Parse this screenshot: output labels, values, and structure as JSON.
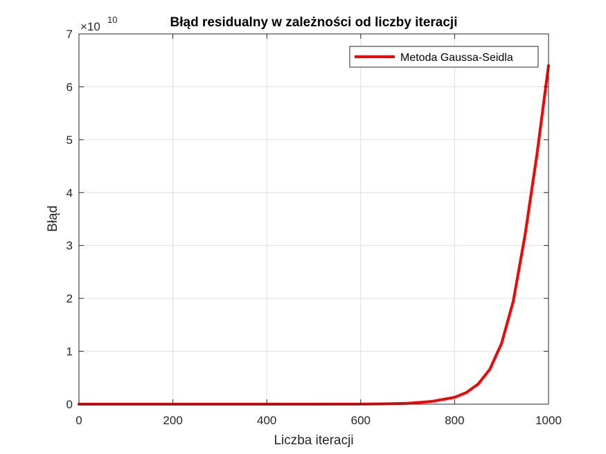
{
  "chart_data": {
    "type": "line",
    "title": "Błąd residualny w zależności od liczby iteracji",
    "xlabel": "Liczba iteracji",
    "ylabel": "Błąd",
    "xlim": [
      0,
      1000
    ],
    "ylim": [
      0,
      7
    ],
    "y_multiplier_base": "×10",
    "y_multiplier_exponent": "10",
    "xticks": [
      0,
      200,
      400,
      600,
      800,
      1000
    ],
    "xtick_labels": [
      "0",
      "200",
      "400",
      "600",
      "800",
      "1000"
    ],
    "yticks": [
      0,
      1,
      2,
      3,
      4,
      5,
      6,
      7
    ],
    "ytick_labels": [
      "0",
      "1",
      "2",
      "3",
      "4",
      "5",
      "6",
      "7"
    ],
    "grid": true,
    "legend_position": "top-right",
    "series": [
      {
        "name": "Metoda Gaussa-Seidla",
        "color": "#ff0000",
        "x": [
          0,
          100,
          200,
          300,
          400,
          500,
          600,
          650,
          700,
          750,
          800,
          825,
          850,
          875,
          900,
          925,
          950,
          975,
          1000
        ],
        "y": [
          0,
          0,
          0,
          0,
          0,
          0,
          0.002,
          0.006,
          0.017,
          0.05,
          0.13,
          0.22,
          0.38,
          0.66,
          1.15,
          1.95,
          3.2,
          4.7,
          6.4
        ]
      }
    ]
  }
}
